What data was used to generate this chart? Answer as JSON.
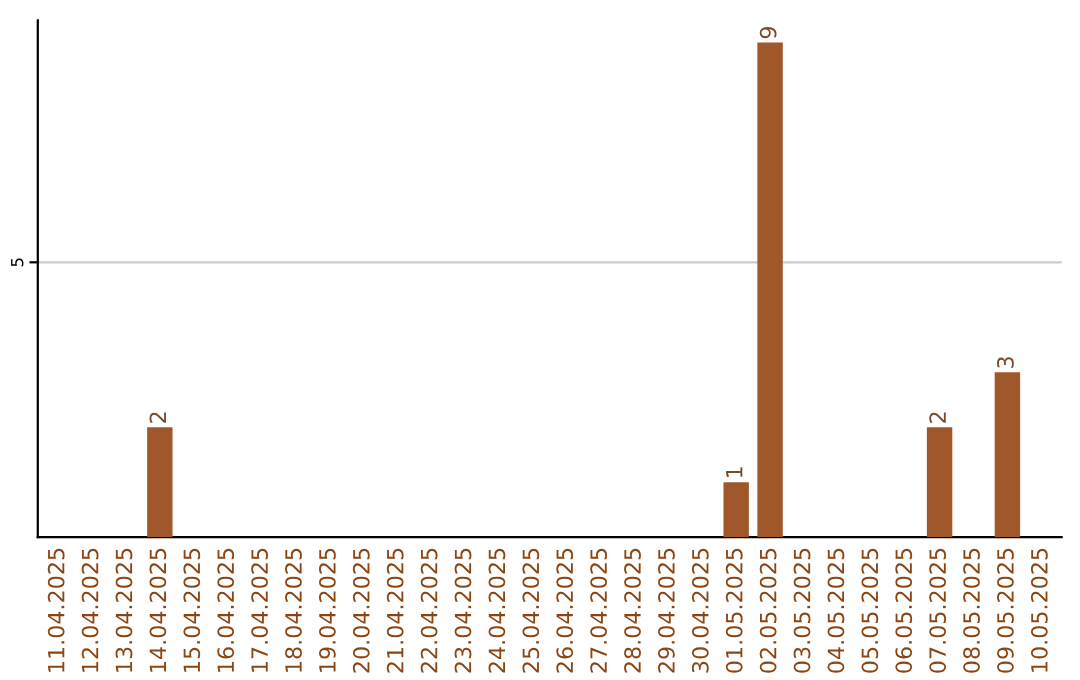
{
  "chart_data": {
    "type": "bar",
    "categories": [
      "11.04.2025",
      "12.04.2025",
      "13.04.2025",
      "14.04.2025",
      "15.04.2025",
      "16.04.2025",
      "17.04.2025",
      "18.04.2025",
      "19.04.2025",
      "20.04.2025",
      "21.04.2025",
      "22.04.2025",
      "23.04.2025",
      "24.04.2025",
      "25.04.2025",
      "26.04.2025",
      "27.04.2025",
      "28.04.2025",
      "29.04.2025",
      "30.04.2025",
      "01.05.2025",
      "02.05.2025",
      "03.05.2025",
      "04.05.2025",
      "05.05.2025",
      "06.05.2025",
      "07.05.2025",
      "08.05.2025",
      "09.05.2025",
      "10.05.2025"
    ],
    "values": [
      0,
      0,
      0,
      2,
      0,
      0,
      0,
      0,
      0,
      0,
      0,
      0,
      0,
      0,
      0,
      0,
      0,
      0,
      0,
      0,
      1,
      9,
      0,
      0,
      0,
      0,
      2,
      0,
      3,
      0
    ],
    "value_labels": [
      null,
      null,
      null,
      "2",
      null,
      null,
      null,
      null,
      null,
      null,
      null,
      null,
      null,
      null,
      null,
      null,
      null,
      null,
      null,
      null,
      "1",
      "9",
      null,
      null,
      null,
      null,
      "2",
      null,
      "3",
      null
    ],
    "color": "#a0582a",
    "ylim": [
      0,
      9.4
    ],
    "yticks": [
      5
    ],
    "grid": "y"
  }
}
